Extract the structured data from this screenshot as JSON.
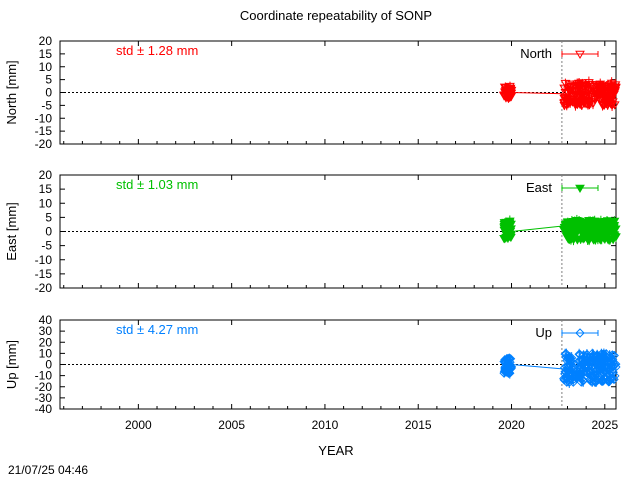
{
  "title": "Coordinate repeatability of SONP",
  "timestamp": "21/07/25 04:46",
  "xlabel": "YEAR",
  "colors": {
    "north": "#ff0000",
    "east": "#00c000",
    "up": "#0080ff",
    "axis": "#000000",
    "grid": "#808080"
  },
  "chart_data": [
    {
      "type": "scatter",
      "ylabel": "North [mm]",
      "legend": "North",
      "legend_placement": "top-right",
      "std_label": "std ± 1.28 mm",
      "marker": "triangle-down-open",
      "xlim": [
        1995.8,
        2025.6
      ],
      "ylim": [
        -20,
        20
      ],
      "yticks": [
        -20,
        -15,
        -10,
        -5,
        0,
        5,
        10,
        15,
        20
      ],
      "xticks": [
        2000,
        2005,
        2010,
        2015,
        2020,
        2025
      ],
      "reference_line_year": 2022.7,
      "clusters": [
        {
          "x_range": [
            2019.6,
            2020.0
          ],
          "y_range": [
            -2.5,
            2.5
          ]
        },
        {
          "x_range": [
            2022.8,
            2025.6
          ],
          "y_range": [
            -5,
            4
          ]
        }
      ],
      "connector": [
        [
          2020.0,
          0
        ],
        [
          2022.8,
          -0.5
        ]
      ]
    },
    {
      "type": "scatter",
      "ylabel": "East [mm]",
      "legend": "East",
      "legend_placement": "top-right",
      "std_label": "std ± 1.03 mm",
      "marker": "triangle-down-filled",
      "xlim": [
        1995.8,
        2025.6
      ],
      "ylim": [
        -20,
        20
      ],
      "yticks": [
        -20,
        -15,
        -10,
        -5,
        0,
        5,
        10,
        15,
        20
      ],
      "xticks": [
        2000,
        2005,
        2010,
        2015,
        2020,
        2025
      ],
      "reference_line_year": 2022.7,
      "clusters": [
        {
          "x_range": [
            2019.6,
            2020.0
          ],
          "y_range": [
            -2.5,
            4
          ]
        },
        {
          "x_range": [
            2022.8,
            2025.6
          ],
          "y_range": [
            -3,
            4
          ]
        }
      ],
      "connector": [
        [
          2020.0,
          0
        ],
        [
          2022.8,
          2
        ]
      ]
    },
    {
      "type": "scatter",
      "ylabel": "Up [mm]",
      "legend": "Up",
      "legend_placement": "top-right",
      "std_label": "std ± 4.27 mm",
      "marker": "diamond-open",
      "xlim": [
        1995.8,
        2025.6
      ],
      "ylim": [
        -40,
        40
      ],
      "yticks": [
        -40,
        -30,
        -20,
        -10,
        0,
        10,
        20,
        30,
        40
      ],
      "xticks": [
        2000,
        2005,
        2010,
        2015,
        2020,
        2025
      ],
      "reference_line_year": 2022.7,
      "clusters": [
        {
          "x_range": [
            2019.6,
            2020.0
          ],
          "y_range": [
            -8,
            6
          ]
        },
        {
          "x_range": [
            2022.8,
            2025.6
          ],
          "y_range": [
            -16,
            10
          ]
        }
      ],
      "connector": [
        [
          2020.0,
          0
        ],
        [
          2022.8,
          -4
        ]
      ]
    }
  ]
}
